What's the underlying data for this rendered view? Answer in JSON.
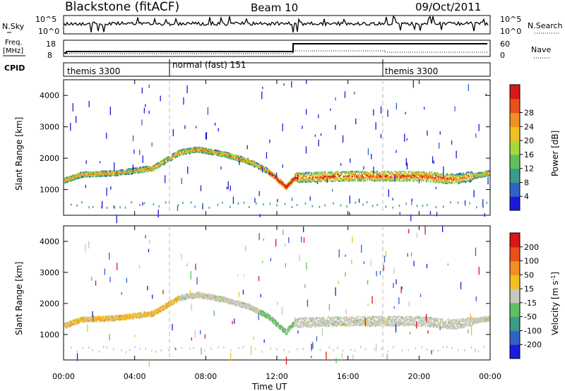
{
  "header": {
    "station": "Blackstone (fitACF)",
    "beam": "Beam 10",
    "date": "09/Oct/2011"
  },
  "top_panels": {
    "nsky_label": "N.Sky",
    "nsearch_label": "N.Search",
    "nsky_ticks": [
      "10^5",
      "10^0"
    ],
    "nsky_right_ticks": [
      "10^5",
      "10^0"
    ],
    "freq_label_1": "Freq.",
    "freq_label_2": "[MHz]",
    "freq_ticks": [
      "18",
      "8"
    ],
    "nave_label": "Nave",
    "nave_ticks": [
      "60",
      "0"
    ],
    "cpid_label": "CPID",
    "cpid_segments": [
      {
        "name": "themis 3300",
        "start_h": 0,
        "end_h": 6
      },
      {
        "name": "normal (fast) 151",
        "start_h": 6,
        "end_h": 18
      },
      {
        "name": "themis 3300",
        "start_h": 18,
        "end_h": 24
      }
    ]
  },
  "chart_data": [
    {
      "type": "heatmap",
      "panel": "power",
      "ylabel": "Slant Range [km]",
      "ylim": [
        180,
        4500
      ],
      "yticks": [
        1000,
        2000,
        3000,
        4000
      ],
      "xlim": [
        0,
        24
      ],
      "colorbar": {
        "label": "Power [dB]",
        "ticks": [
          "4",
          "8",
          "12",
          "16",
          "20",
          "24",
          "28"
        ],
        "colors": [
          "#1a1adc",
          "#2f63c8",
          "#3a9a8c",
          "#5fbf5f",
          "#a8d838",
          "#f0c020",
          "#f09020",
          "#e85018",
          "#d81818"
        ]
      },
      "scatter_band": [
        {
          "t": 0.0,
          "range": 1300
        },
        {
          "t": 1.0,
          "range": 1500
        },
        {
          "t": 3.0,
          "range": 1550
        },
        {
          "t": 5.0,
          "range": 1700
        },
        {
          "t": 6.5,
          "range": 2200
        },
        {
          "t": 7.5,
          "range": 2300
        },
        {
          "t": 9.0,
          "range": 2150
        },
        {
          "t": 10.5,
          "range": 1900
        },
        {
          "t": 11.5,
          "range": 1600
        },
        {
          "t": 12.5,
          "range": 1100
        },
        {
          "t": 13.0,
          "range": 1400
        },
        {
          "t": 16.0,
          "range": 1450
        },
        {
          "t": 20.0,
          "range": 1450
        },
        {
          "t": 22.0,
          "range": 1350
        },
        {
          "t": 24.0,
          "range": 1550
        }
      ]
    },
    {
      "type": "heatmap",
      "panel": "velocity",
      "ylabel": "Slant Range [km]",
      "ylim": [
        180,
        4500
      ],
      "yticks": [
        1000,
        2000,
        3000,
        4000
      ],
      "xlim": [
        0,
        24
      ],
      "xlabel": "Time UT",
      "xticks": [
        "00:00",
        "04:00",
        "08:00",
        "12:00",
        "16:00",
        "20:00",
        "00:00"
      ],
      "colorbar": {
        "label": "Velocity [m s^-1]",
        "ticks": [
          "200",
          "100",
          "50",
          "15",
          "-15",
          "-50",
          "-100",
          "-200"
        ],
        "colors": [
          "#1a1adc",
          "#2f63c8",
          "#3a9a8c",
          "#5fbf5f",
          "#c8c8c0",
          "#f0c020",
          "#f09020",
          "#e85018",
          "#d81818"
        ]
      }
    }
  ]
}
